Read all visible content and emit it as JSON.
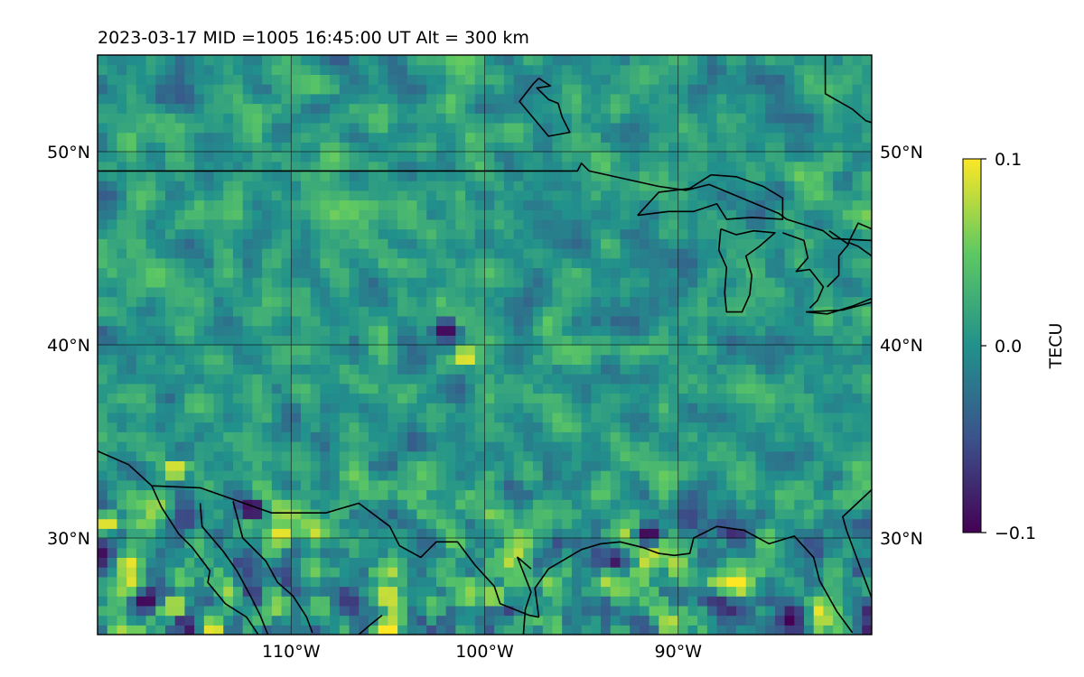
{
  "title": "2023-03-17  MID =1005    16:45:00  UT  Alt = 300 km",
  "colorbar": {
    "label": "TECU",
    "ticks": [
      "0.1",
      "0.0",
      "−0.1"
    ],
    "range": [
      -0.1,
      0.1
    ],
    "colormap": "viridis",
    "colormap_stops": [
      "#440154",
      "#3b528b",
      "#21918c",
      "#5ec962",
      "#fde725"
    ]
  },
  "chart_data": {
    "type": "heatmap",
    "title": "2023-03-17  MID =1005    16:45:00  UT  Alt = 300 km",
    "xlabel": "",
    "ylabel": "",
    "projection": "PlateCarree map",
    "lon_range": [
      -120,
      -80
    ],
    "lat_range": [
      25,
      55
    ],
    "grid": true,
    "lon_ticks": [
      {
        "value": -110,
        "label": "110°W"
      },
      {
        "value": -100,
        "label": "100°W"
      },
      {
        "value": -90,
        "label": "90°W"
      }
    ],
    "lat_ticks": [
      {
        "value": 50,
        "label": "50°N"
      },
      {
        "value": 40,
        "label": "40°N"
      },
      {
        "value": 30,
        "label": "30°N"
      }
    ],
    "value_range": [
      -0.1,
      0.1
    ],
    "value_unit": "TECU",
    "notable_cells": [
      {
        "lon": -101,
        "lat": 39.4,
        "value": 0.1
      },
      {
        "lon": -102,
        "lat": 40.8,
        "value": -0.1
      },
      {
        "lon": -117.5,
        "lat": 26.8,
        "value": -0.1
      },
      {
        "lon": -91.5,
        "lat": 30.2,
        "value": -0.1
      },
      {
        "lon": -112,
        "lat": 31.5,
        "value": -0.1
      },
      {
        "lon": -110.5,
        "lat": 30.2,
        "value": 0.1
      },
      {
        "lon": -116,
        "lat": 26.5,
        "value": 0.1
      },
      {
        "lon": -119.5,
        "lat": 30.8,
        "value": 0.1
      },
      {
        "lon": -99.5,
        "lat": 27,
        "value": 0.09
      },
      {
        "lon": -116,
        "lat": 33.6,
        "value": 0.1
      },
      {
        "lon": -105,
        "lat": 27,
        "value": 0.1
      }
    ]
  }
}
